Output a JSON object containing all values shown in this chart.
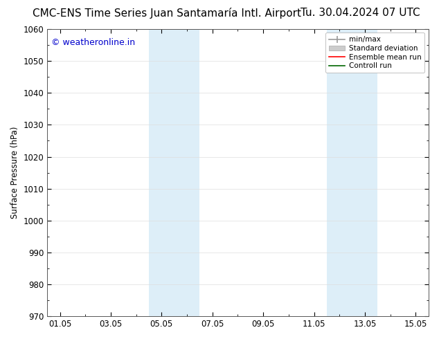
{
  "title_left": "CMC-ENS Time Series Juan Santamaría Intl. Airport",
  "title_right": "Tu. 30.04.2024 07 UTC",
  "ylabel": "Surface Pressure (hPa)",
  "ylim": [
    970,
    1060
  ],
  "yticks": [
    970,
    980,
    990,
    1000,
    1010,
    1020,
    1030,
    1040,
    1050,
    1060
  ],
  "xlim": [
    -0.5,
    14.5
  ],
  "xtick_labels": [
    "01.05",
    "03.05",
    "05.05",
    "07.05",
    "09.05",
    "11.05",
    "13.05",
    "15.05"
  ],
  "xtick_positions": [
    0,
    2,
    4,
    6,
    8,
    10,
    12,
    14
  ],
  "shaded_bands": [
    {
      "x_start": 3.5,
      "x_end": 5.5,
      "color": "#ddeef8",
      "alpha": 1.0
    },
    {
      "x_start": 10.5,
      "x_end": 12.5,
      "color": "#ddeef8",
      "alpha": 1.0
    }
  ],
  "watermark_text": "© weatheronline.in",
  "watermark_color": "#0000cc",
  "watermark_fontsize": 9,
  "background_color": "#ffffff",
  "grid_color": "#dddddd",
  "title_fontsize": 11,
  "legend_fontsize": 7.5,
  "axis_fontsize": 8.5
}
